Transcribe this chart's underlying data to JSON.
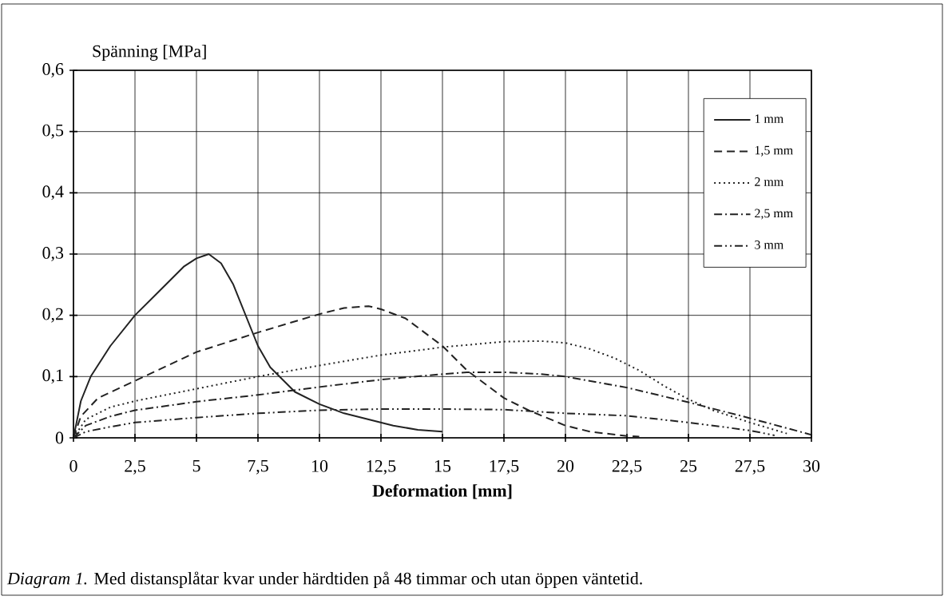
{
  "chart_data": {
    "type": "line",
    "xlabel": "Deformation [mm]",
    "ylabel": "Spänning [MPa]",
    "annotations": [
      "*Diagram 1.* Med distansplåtar kvar under härdtiden på 48 timmar och utan öppen väntetid."
    ],
    "xlim": [
      0,
      30
    ],
    "ylim": [
      0,
      0.6
    ],
    "xticks": [
      0,
      {
        "value": 2.5,
        "label": "2,5"
      },
      5,
      {
        "value": 7.5,
        "label": "7,5"
      },
      10,
      {
        "value": 12.5,
        "label": "12,5"
      },
      15,
      {
        "value": 17.5,
        "label": "17,5"
      },
      20,
      {
        "value": 22.5,
        "label": "22,5"
      },
      25,
      {
        "value": 27.5,
        "label": "27,5"
      },
      30
    ],
    "yticks": [
      0,
      {
        "value": 0.1,
        "label": "0,1"
      },
      {
        "value": 0.2,
        "label": "0,2"
      },
      {
        "value": 0.3,
        "label": "0,3"
      },
      {
        "value": 0.4,
        "label": "0,4"
      },
      {
        "value": 0.5,
        "label": "0,5"
      },
      {
        "value": 0.6,
        "label": "0,6"
      }
    ],
    "grid": true,
    "legend": "top right",
    "marker": "none",
    "series": [
      {
        "name": "1 mm",
        "color": "#222222",
        "line_style": "solid",
        "x": [
          0,
          0.3,
          0.7,
          1.5,
          2.5,
          3.5,
          4.5,
          5,
          5.5,
          6,
          6.5,
          7,
          7.5,
          8,
          9,
          10,
          11,
          12,
          13,
          14,
          15
        ],
        "values": [
          0,
          0.06,
          0.1,
          0.15,
          0.2,
          0.24,
          0.28,
          0.293,
          0.3,
          0.285,
          0.25,
          0.2,
          0.15,
          0.115,
          0.075,
          0.055,
          0.04,
          0.03,
          0.02,
          0.013,
          0.01
        ]
      },
      {
        "name": "1,5 mm",
        "color": "#222222",
        "line_style": "dashed",
        "x": [
          0,
          0.3,
          1,
          2.5,
          5,
          7.5,
          10,
          11,
          12,
          12.5,
          13.5,
          14.5,
          15,
          16,
          17,
          17.5,
          18.5,
          20,
          21,
          22.5,
          23
        ],
        "values": [
          0,
          0.035,
          0.065,
          0.093,
          0.14,
          0.172,
          0.202,
          0.212,
          0.215,
          0.21,
          0.195,
          0.165,
          0.15,
          0.11,
          0.08,
          0.065,
          0.045,
          0.02,
          0.01,
          0.003,
          0.002
        ]
      },
      {
        "name": "2 mm",
        "color": "#222222",
        "line_style": "dotted",
        "x": [
          0,
          0.5,
          1.5,
          2.5,
          5,
          7.5,
          10,
          12.5,
          15,
          17.5,
          19,
          20,
          21,
          22,
          23,
          24,
          25,
          26,
          27.5,
          29
        ],
        "values": [
          0,
          0.03,
          0.05,
          0.06,
          0.08,
          0.1,
          0.118,
          0.135,
          0.148,
          0.157,
          0.158,
          0.155,
          0.145,
          0.13,
          0.11,
          0.085,
          0.063,
          0.045,
          0.025,
          0.007
        ]
      },
      {
        "name": "2,5 mm",
        "color": "#222222",
        "line_style": "dashdotted",
        "x": [
          0,
          0.5,
          1.5,
          2.5,
          5,
          7.5,
          10,
          12.5,
          15,
          16,
          17.5,
          19,
          20,
          22.5,
          25,
          27.5,
          30
        ],
        "values": [
          0,
          0.02,
          0.035,
          0.045,
          0.059,
          0.07,
          0.083,
          0.095,
          0.104,
          0.107,
          0.107,
          0.104,
          0.1,
          0.082,
          0.058,
          0.032,
          0.005
        ]
      },
      {
        "name": "3 mm",
        "color": "#222222",
        "line_style": "dashdotdotted",
        "x": [
          0,
          0.5,
          1.5,
          2.5,
          5,
          7.5,
          10,
          12.5,
          15,
          17.5,
          20,
          22.5,
          25,
          27.5,
          28.5
        ],
        "values": [
          0,
          0.01,
          0.018,
          0.025,
          0.033,
          0.04,
          0.045,
          0.047,
          0.047,
          0.046,
          0.04,
          0.036,
          0.025,
          0.012,
          0.004
        ]
      }
    ]
  }
}
